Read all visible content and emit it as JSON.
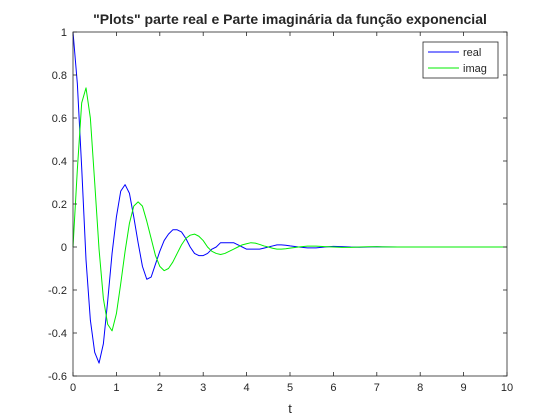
{
  "chart_data": {
    "type": "line",
    "title": "\"Plots\" parte real e Parte imaginária da função exponencial",
    "xlabel": "t",
    "ylabel": "",
    "xlim": [
      0,
      10
    ],
    "ylim": [
      -0.6,
      1
    ],
    "xticks": [
      "0",
      "1",
      "2",
      "3",
      "4",
      "5",
      "6",
      "7",
      "8",
      "9",
      "10"
    ],
    "yticks": [
      "-0.6",
      "-0.4",
      "-0.2",
      "0",
      "0.2",
      "0.4",
      "0.6",
      "0.8",
      "1"
    ],
    "grid": false,
    "legend_position": "top-right",
    "series": [
      {
        "name": "real",
        "color": "#0000ff",
        "x": [
          0,
          0.1,
          0.2,
          0.3,
          0.4,
          0.5,
          0.6,
          0.7,
          0.8,
          0.9,
          1.0,
          1.1,
          1.2,
          1.3,
          1.4,
          1.5,
          1.6,
          1.7,
          1.8,
          1.9,
          2.0,
          2.1,
          2.2,
          2.3,
          2.4,
          2.5,
          2.6,
          2.7,
          2.8,
          2.9,
          3.0,
          3.1,
          3.2,
          3.3,
          3.4,
          3.5,
          3.6,
          3.7,
          3.8,
          3.9,
          4.0,
          4.1,
          4.2,
          4.3,
          4.4,
          4.5,
          4.6,
          4.7,
          4.8,
          4.9,
          5.0,
          5.2,
          5.4,
          5.6,
          5.8,
          6.0,
          6.2,
          6.4,
          6.6,
          6.8,
          7.0,
          7.5,
          8.0,
          8.5,
          9.0,
          9.5,
          10.0
        ],
        "y": [
          1.0,
          0.76,
          0.37,
          -0.06,
          -0.34,
          -0.49,
          -0.54,
          -0.45,
          -0.25,
          -0.03,
          0.14,
          0.26,
          0.29,
          0.25,
          0.14,
          0.02,
          -0.09,
          -0.15,
          -0.14,
          -0.08,
          -0.02,
          0.03,
          0.06,
          0.08,
          0.08,
          0.07,
          0.04,
          0.0,
          -0.03,
          -0.04,
          -0.04,
          -0.03,
          -0.01,
          0.0,
          0.02,
          0.02,
          0.02,
          0.02,
          0.01,
          0.0,
          -0.01,
          -0.01,
          -0.01,
          -0.01,
          -0.005,
          0.0,
          0.005,
          0.01,
          0.01,
          0.008,
          0.005,
          0.0,
          -0.004,
          -0.004,
          0.0,
          0.003,
          0.002,
          0.0,
          -0.001,
          0.0,
          0.001,
          0.0,
          0.0,
          0.0,
          0.0,
          0.0,
          0.0
        ]
      },
      {
        "name": "imag",
        "color": "#00ee00",
        "x": [
          0,
          0.1,
          0.2,
          0.3,
          0.4,
          0.5,
          0.6,
          0.7,
          0.8,
          0.9,
          1.0,
          1.1,
          1.2,
          1.3,
          1.4,
          1.5,
          1.6,
          1.7,
          1.8,
          1.9,
          2.0,
          2.1,
          2.2,
          2.3,
          2.4,
          2.5,
          2.6,
          2.7,
          2.8,
          2.9,
          3.0,
          3.1,
          3.2,
          3.3,
          3.4,
          3.5,
          3.6,
          3.7,
          3.8,
          3.9,
          4.0,
          4.1,
          4.2,
          4.3,
          4.4,
          4.5,
          4.6,
          4.7,
          4.8,
          4.9,
          5.0,
          5.2,
          5.4,
          5.6,
          5.8,
          6.0,
          6.2,
          6.4,
          6.6,
          6.8,
          7.0,
          7.5,
          8.0,
          8.5,
          9.0,
          9.5,
          10.0
        ],
        "y": [
          0.0,
          0.36,
          0.67,
          0.74,
          0.6,
          0.3,
          -0.01,
          -0.24,
          -0.36,
          -0.39,
          -0.31,
          -0.17,
          -0.02,
          0.11,
          0.19,
          0.21,
          0.19,
          0.12,
          0.04,
          -0.04,
          -0.09,
          -0.11,
          -0.1,
          -0.07,
          -0.03,
          0.01,
          0.04,
          0.055,
          0.06,
          0.05,
          0.03,
          0.0,
          -0.02,
          -0.03,
          -0.035,
          -0.03,
          -0.02,
          -0.01,
          0.0,
          0.01,
          0.015,
          0.02,
          0.018,
          0.012,
          0.005,
          0.0,
          -0.006,
          -0.01,
          -0.01,
          -0.008,
          -0.005,
          0.0,
          0.004,
          0.004,
          0.002,
          0.0,
          -0.002,
          -0.002,
          0.0,
          0.001,
          0.001,
          0.0,
          0.0,
          0.0,
          0.0,
          0.0,
          0.0
        ]
      }
    ]
  }
}
